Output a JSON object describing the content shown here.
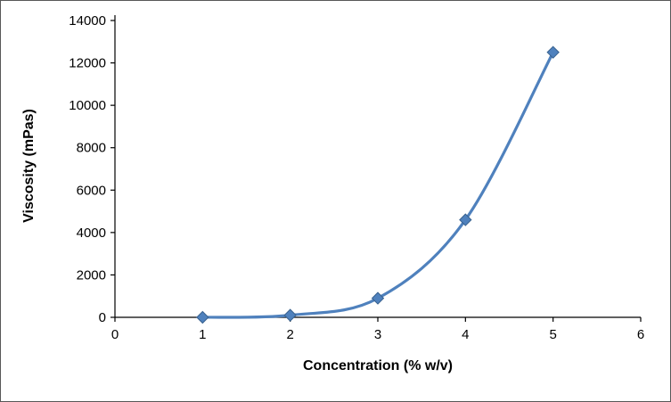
{
  "figure": {
    "background": "#ffffff",
    "border_color": "#585858"
  },
  "chart_data": {
    "type": "line",
    "title": "",
    "xlabel": "Concentration (% w/v)",
    "ylabel": "Viscosity (mPas)",
    "x": [
      1,
      2,
      3,
      4,
      5
    ],
    "series": [
      {
        "name": "Viscosity",
        "values": [
          0,
          100,
          900,
          4600,
          12500
        ]
      }
    ],
    "xlim": [
      0,
      6
    ],
    "ylim": [
      0,
      14000
    ],
    "x_ticks": [
      0,
      1,
      2,
      3,
      4,
      5,
      6
    ],
    "y_ticks": [
      0,
      2000,
      4000,
      6000,
      8000,
      10000,
      12000,
      14000
    ],
    "grid": false,
    "legend": "none",
    "smooth": true,
    "line_color": "#4F81BD",
    "marker": "diamond",
    "marker_fill": "#4F81BD",
    "marker_stroke": "#38618E",
    "axis_color": "#000000"
  }
}
